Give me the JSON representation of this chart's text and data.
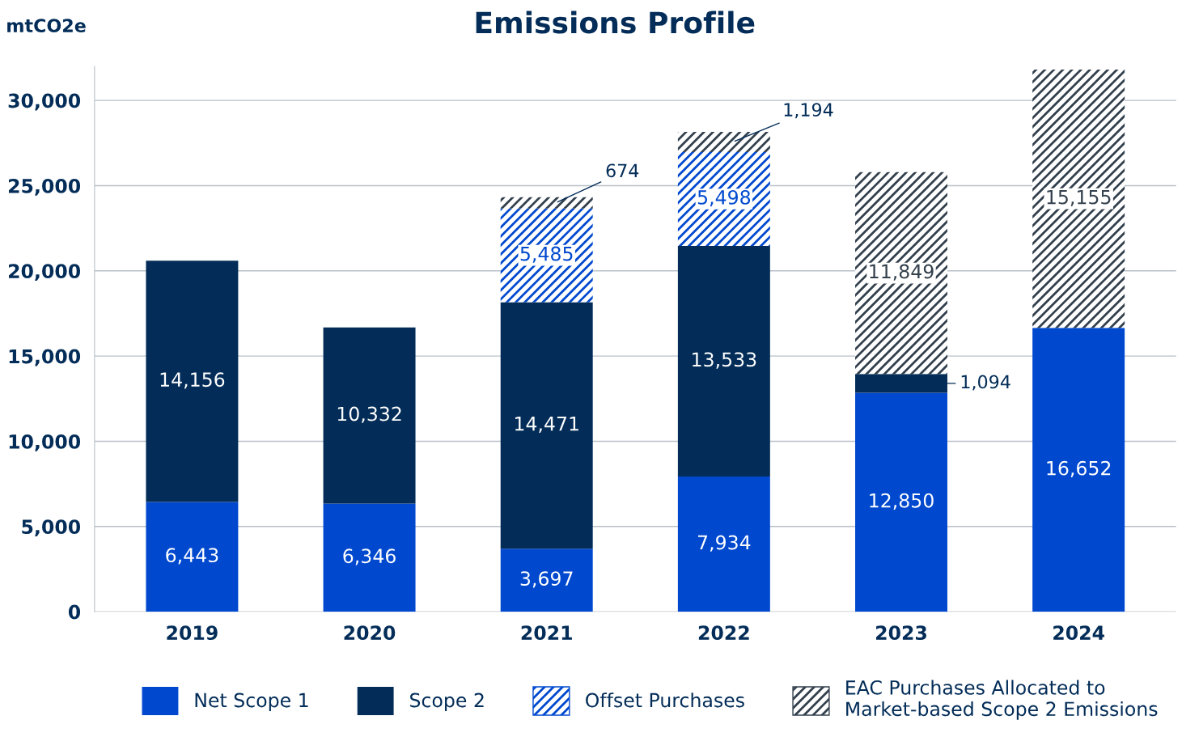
{
  "chart_data": {
    "type": "bar",
    "stacked": true,
    "title": "Emissions Profile",
    "ylabel": "mtCO2e",
    "categories": [
      "2019",
      "2020",
      "2021",
      "2022",
      "2023",
      "2024"
    ],
    "series": [
      {
        "name": "Net Scope 1",
        "color": "#0049cf",
        "values": [
          6443,
          6346,
          3697,
          7934,
          12850,
          16652
        ],
        "value_labels": [
          "6,443",
          "6,346",
          "3,697",
          "7,934",
          "12,850",
          "16,652"
        ]
      },
      {
        "name": "Scope 2",
        "color": "#032d58",
        "values": [
          14156,
          10332,
          14471,
          13533,
          1094,
          null
        ],
        "value_labels": [
          "14,156",
          "10,332",
          "14,471",
          "13,533",
          "1,094",
          null
        ]
      },
      {
        "name": "Offset Purchases",
        "color": "#0049cf",
        "values": [
          null,
          null,
          5485,
          5498,
          null,
          null
        ],
        "value_labels": [
          null,
          null,
          "5,485",
          "5,498",
          null,
          null
        ]
      },
      {
        "name": "EAC Purchases Allocated to\nMarket-based Scope 2 Emissions",
        "color": "#33404d",
        "values": [
          null,
          null,
          674,
          1194,
          11849,
          15155
        ],
        "value_labels": [
          null,
          null,
          "674",
          "1,194",
          "11,849",
          "15,155"
        ]
      }
    ],
    "ylim": [
      0,
      32000
    ],
    "yticks": [
      {
        "value": 0,
        "label": "0"
      },
      {
        "value": 5000,
        "label": "5,000"
      },
      {
        "value": 10000,
        "label": "10,000"
      },
      {
        "value": 15000,
        "label": "15,000"
      },
      {
        "value": 20000,
        "label": "20,000"
      },
      {
        "value": 25000,
        "label": "25,000"
      },
      {
        "value": 30000,
        "label": "30,000"
      }
    ],
    "grid": "y",
    "legend": "bottom"
  }
}
